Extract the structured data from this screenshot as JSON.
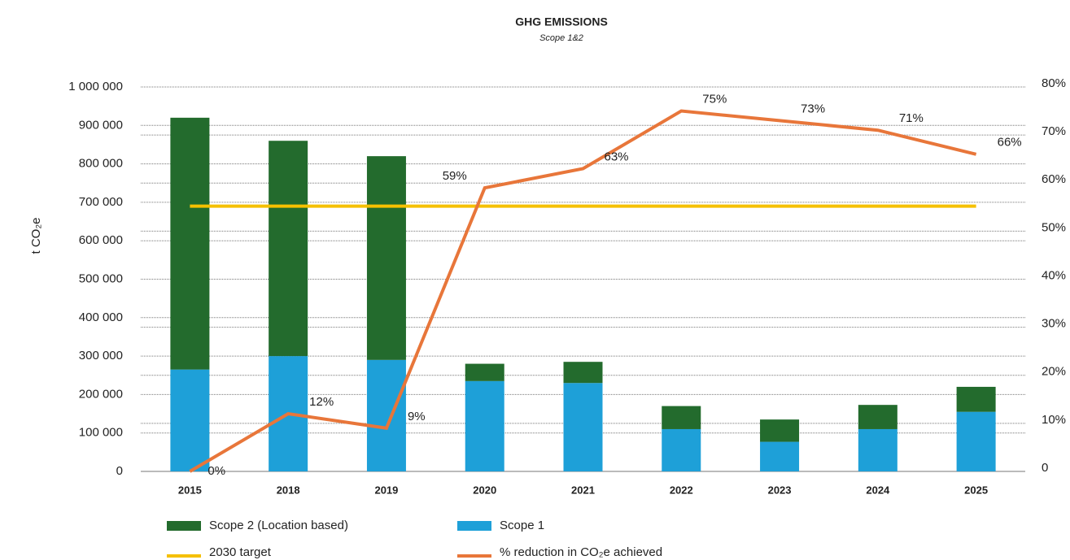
{
  "chart_data": {
    "type": "bar",
    "title": "GHG EMISSIONS",
    "subtitle": "Scope 1&2",
    "y_label": "t CO₂e",
    "categories": [
      "2015",
      "2018",
      "2019",
      "2020",
      "2021",
      "2022",
      "2023",
      "2024",
      "2025"
    ],
    "series": [
      {
        "name": "Scope 1",
        "color": "#1ea0d8",
        "values": [
          265000,
          300000,
          290000,
          235000,
          230000,
          110000,
          77000,
          110000,
          155000
        ]
      },
      {
        "name": "Scope 2 (Location based)",
        "color": "#236b2d",
        "values": [
          655000,
          560000,
          530000,
          45000,
          55000,
          60000,
          58000,
          63000,
          65000
        ]
      },
      {
        "name": "2030 target",
        "type": "line",
        "color": "#f5c000",
        "values": [
          690000,
          690000,
          690000,
          690000,
          690000,
          690000,
          690000,
          690000,
          690000
        ]
      },
      {
        "name": "% reduction in CO₂e achieved",
        "type": "line",
        "axis": "y2",
        "color": "#e8763a",
        "values": [
          0,
          12,
          9,
          59,
          63,
          75,
          73,
          71,
          66
        ],
        "value_labels": [
          "0%",
          "12%",
          "9%",
          "59%",
          "63%",
          "75%",
          "73%",
          "71%",
          "66%"
        ]
      }
    ],
    "ylim": [
      0,
      1000000
    ],
    "yticks": [
      0,
      {
        "value": 100000,
        "label": "100 000"
      },
      {
        "value": 200000,
        "label": "200 000"
      },
      {
        "value": 300000,
        "label": "300 000"
      },
      {
        "value": 400000,
        "label": "400 000"
      },
      {
        "value": 500000,
        "label": "500 000"
      },
      {
        "value": 600000,
        "label": "600 000"
      },
      {
        "value": 700000,
        "label": "700 000"
      },
      {
        "value": 800000,
        "label": "800 000"
      },
      {
        "value": 900000,
        "label": "900 000"
      },
      {
        "value": 1000000,
        "label": "1 000 000"
      }
    ],
    "y2lim": [
      0,
      80
    ],
    "y2ticks": [
      0,
      {
        "value": 10,
        "label": "10%"
      },
      {
        "value": 20,
        "label": "20%"
      },
      {
        "value": 30,
        "label": "30%"
      },
      {
        "value": 40,
        "label": "40%"
      },
      {
        "value": 50,
        "label": "50%"
      },
      {
        "value": 60,
        "label": "60%"
      },
      {
        "value": 70,
        "label": "70%"
      },
      {
        "value": 80,
        "label": "80%"
      }
    ],
    "grid": true
  }
}
